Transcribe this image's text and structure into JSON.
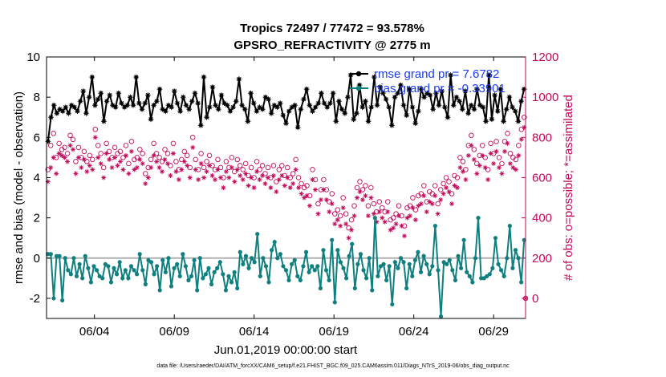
{
  "chart_data": {
    "type": "line",
    "title": "Tropics 72497 / 77472 = 93.578%",
    "subtitle": "GPSRO_REFRACTIVITY @ 2775 m",
    "xlabel": "Jun.01,2019 00:00:00 start",
    "ylabel": "rmse and bias (model - observation)",
    "ylabel_right": "# of obs: o=possible; *=assimilated",
    "footnote": "data file: /Users/raeder/DAI/ATM_forcXX/CAM6_setup/f.e21.FHIST_BGC.f09_025.CAM6assim.011/Diags_NTrS_2019-06/obs_diag_output.nc",
    "xlim": [
      1,
      31
    ],
    "ylim": [
      -3,
      10
    ],
    "ylim_right": [
      -100,
      1200
    ],
    "x_ticks": [
      4,
      9,
      14,
      19,
      24,
      29
    ],
    "x_tick_labels": [
      "06/04",
      "06/09",
      "06/14",
      "06/19",
      "06/24",
      "06/29"
    ],
    "y_ticks": [
      -2,
      0,
      2,
      4,
      6,
      8,
      10
    ],
    "y_tick_labels": [
      "-2",
      "0",
      "2",
      "4",
      "6",
      "8",
      "10"
    ],
    "y_ticks_right": [
      0,
      200,
      400,
      600,
      800,
      1000,
      1200
    ],
    "y_tick_labels_right": [
      "0",
      "200",
      "400",
      "600",
      "800",
      "1000",
      "1200"
    ],
    "zero_line": 0,
    "colors": {
      "rmse": "#000000",
      "bias": "#0f7f7f",
      "obs": "#c0095a",
      "legend_text": "#1a3cf0",
      "zero": "#b0b0b0"
    },
    "series": [
      {
        "name": "rmse grand pr = 7.6782",
        "legend": "rmse grand pr = 7.6782",
        "axis": "left",
        "marker": "asterisk",
        "values": [
          5.8,
          7.0,
          7.6,
          7.2,
          7.4,
          7.3,
          7.5,
          7.2,
          7.6,
          7.5,
          7.3,
          7.8,
          8.3,
          7.2,
          8.0,
          9.0,
          7.6,
          7.9,
          8.2,
          6.8,
          7.8,
          8.1,
          7.6,
          7.5,
          8.2,
          7.7,
          7.5,
          7.6,
          8.0,
          7.6,
          9.0,
          7.7,
          7.4,
          7.7,
          8.1,
          6.9,
          7.6,
          7.8,
          8.4,
          7.4,
          7.3,
          7.6,
          7.5,
          8.3,
          7.7,
          7.3,
          8.0,
          7.6,
          7.4,
          7.8,
          8.2,
          7.7,
          6.6,
          9.0,
          7.0,
          7.5,
          8.5,
          7.6,
          7.4,
          8.1,
          7.7,
          7.6,
          7.3,
          7.5,
          7.8,
          8.9,
          7.6,
          7.4,
          6.8,
          8.2,
          7.7,
          7.3,
          7.5,
          7.4,
          8.0,
          7.9,
          7.2,
          7.6,
          7.5,
          7.7,
          7.1,
          6.7,
          7.3,
          7.5,
          7.6,
          6.5,
          7.4,
          7.9,
          8.4,
          7.6,
          7.3,
          7.5,
          7.7,
          8.2,
          7.7,
          7.5,
          7.7,
          8.2,
          6.8,
          7.8,
          7.4,
          7.2,
          8.0,
          9.1,
          6.9,
          7.2,
          8.6,
          7.5,
          7.8,
          6.8,
          7.5,
          9.0,
          7.6,
          8.5,
          8.2,
          7.9,
          7.5,
          6.6,
          8.0,
          8.2,
          8.6,
          7.6,
          7.1,
          8.4,
          7.5,
          6.7,
          7.3,
          8.4,
          8.0,
          8.2,
          8.1,
          7.4,
          8.2,
          7.6,
          8.3,
          7.5,
          7.0,
          9.1,
          7.6,
          8.0,
          7.8,
          7.4,
          8.3,
          7.2,
          7.6,
          7.4,
          8.4,
          7.6,
          7.5,
          6.8,
          9.1,
          6.9,
          8.1,
          7.3,
          8.4,
          6.8,
          7.4,
          8.0,
          7.5,
          7.3,
          6.8,
          7.8,
          8.4
        ]
      },
      {
        "name": "bias grand pr = -0.33901",
        "legend": "bias grand pr = -0.33901",
        "axis": "left",
        "marker": "dot",
        "values": [
          0.2,
          0.2,
          -2.0,
          0.1,
          0.1,
          -2.1,
          0.0,
          -0.6,
          -0.8,
          0.0,
          -0.9,
          -0.3,
          -1.0,
          0.1,
          -0.5,
          -1.2,
          -0.4,
          -0.6,
          -0.9,
          -1.0,
          -0.3,
          -0.4,
          -1.2,
          -0.5,
          -0.8,
          -0.2,
          -1.0,
          -0.6,
          -1.0,
          -0.4,
          -0.6,
          -0.8,
          0.2,
          -0.6,
          -1.3,
          -0.1,
          -0.2,
          -0.8,
          -0.4,
          -1.6,
          -0.1,
          -0.7,
          0.0,
          -1.4,
          -0.5,
          -0.3,
          -0.9,
          0.2,
          -0.4,
          -1.1,
          -0.9,
          -0.1,
          -1.6,
          0.0,
          -1.0,
          -0.8,
          -0.5,
          -1.3,
          -0.7,
          -0.5,
          -0.2,
          -0.8,
          -1.6,
          -0.9,
          -1.2,
          -0.7,
          -1.5,
          0.3,
          -0.3,
          0.1,
          -0.5,
          0.0,
          -0.2,
          1.2,
          -0.9,
          0.0,
          -0.4,
          -1.2,
          0.4,
          0.8,
          0.0,
          0.2,
          -0.4,
          -0.6,
          -1.1,
          -0.3,
          -0.1,
          -0.9,
          -1.1,
          -0.4,
          0.3,
          -0.7,
          -0.4,
          -0.6,
          -0.4,
          -1.5,
          0.4,
          -0.6,
          -1.1,
          0.9,
          -2.2,
          0.4,
          -0.2,
          -0.5,
          -1.0,
          0.1,
          0.7,
          -1.5,
          -0.3,
          0.2,
          -0.6,
          -1.0,
          0.0,
          -1.6,
          2.0,
          -0.9,
          -0.4,
          -0.3,
          -1.1,
          -0.4,
          -2.3,
          -0.2,
          -0.5,
          0.0,
          -0.2,
          -1.5,
          -0.3,
          -0.9,
          -0.1,
          0.3,
          -0.7,
          0.1,
          -0.3,
          -0.8,
          -0.4,
          1.6,
          -0.6,
          -2.9,
          -0.2,
          -0.3,
          -0.1,
          -0.6,
          -1.1,
          0.1,
          -0.5,
          0.9,
          -0.7,
          -0.9,
          -1.2,
          0.0,
          2.0,
          -1.0,
          -1.0,
          -0.9,
          -0.8,
          -0.5,
          1.0,
          -0.3,
          -0.6,
          -0.9,
          0.0,
          1.6,
          -0.5,
          0.4,
          0.0,
          -1.2,
          0.9
        ]
      },
      {
        "name": "possible",
        "axis": "right",
        "marker": "circle",
        "values": [
          640,
          760,
          820,
          700,
          770,
          740,
          750,
          720,
          810,
          790,
          680,
          750,
          700,
          730,
          680,
          710,
          690,
          840,
          760,
          720,
          650,
          770,
          730,
          700,
          750,
          720,
          730,
          700,
          760,
          670,
          780,
          690,
          700,
          740,
          720,
          620,
          650,
          690,
          770,
          720,
          700,
          680,
          740,
          720,
          660,
          770,
          680,
          640,
          690,
          730,
          710,
          650,
          800,
          690,
          640,
          720,
          650,
          680,
          710,
          660,
          640,
          690,
          650,
          600,
          680,
          650,
          700,
          630,
          690,
          660,
          640,
          670,
          610,
          650,
          600,
          680,
          640,
          660,
          620,
          650,
          600,
          660,
          580,
          640,
          660,
          610,
          650,
          600,
          620,
          690,
          600,
          570,
          550,
          560,
          510,
          640,
          590,
          470,
          540,
          590,
          540,
          480,
          520,
          420,
          440,
          410,
          500,
          420,
          350,
          390,
          460,
          550,
          580,
          540,
          560,
          460,
          550,
          470,
          430,
          480,
          450,
          430,
          480,
          390,
          400,
          420,
          460,
          410,
          360,
          450,
          460,
          500,
          440,
          510,
          520,
          560,
          480,
          530,
          520,
          560,
          470,
          540,
          570,
          600,
          580,
          520,
          610,
          600,
          700,
          680,
          640,
          760,
          810,
          740,
          670,
          710,
          760,
          700,
          640,
          770,
          720,
          780,
          700,
          670,
          780,
          820,
          720,
          700,
          690,
          760,
          840,
          900
        ]
      },
      {
        "name": "assimilated",
        "axis": "right",
        "marker": "asterisk",
        "values": [
          580,
          650,
          700,
          620,
          720,
          710,
          700,
          680,
          760,
          740,
          620,
          700,
          650,
          690,
          630,
          660,
          640,
          800,
          700,
          670,
          600,
          720,
          690,
          650,
          700,
          660,
          680,
          640,
          710,
          620,
          730,
          640,
          650,
          690,
          670,
          570,
          600,
          650,
          710,
          680,
          650,
          630,
          690,
          670,
          610,
          720,
          630,
          590,
          640,
          680,
          660,
          600,
          750,
          640,
          590,
          670,
          600,
          630,
          660,
          610,
          590,
          640,
          600,
          550,
          630,
          600,
          650,
          580,
          640,
          610,
          590,
          620,
          560,
          600,
          550,
          630,
          590,
          610,
          570,
          600,
          550,
          610,
          530,
          590,
          610,
          560,
          600,
          550,
          570,
          640,
          550,
          520,
          500,
          510,
          460,
          590,
          540,
          420,
          490,
          540,
          490,
          430,
          470,
          370,
          390,
          360,
          450,
          370,
          300,
          340,
          410,
          500,
          530,
          490,
          510,
          410,
          500,
          420,
          380,
          430,
          400,
          380,
          430,
          340,
          350,
          370,
          410,
          360,
          310,
          400,
          410,
          450,
          390,
          460,
          470,
          510,
          430,
          480,
          470,
          510,
          420,
          490,
          520,
          550,
          530,
          470,
          560,
          550,
          650,
          630,
          590,
          710,
          760,
          690,
          620,
          660,
          710,
          650,
          590,
          720,
          670,
          730,
          650,
          620,
          730,
          770,
          670,
          650,
          640,
          710,
          790,
          850
        ]
      }
    ],
    "end_points": {
      "possible_right_edge": 0,
      "assimilated_right_edge": 0
    }
  }
}
